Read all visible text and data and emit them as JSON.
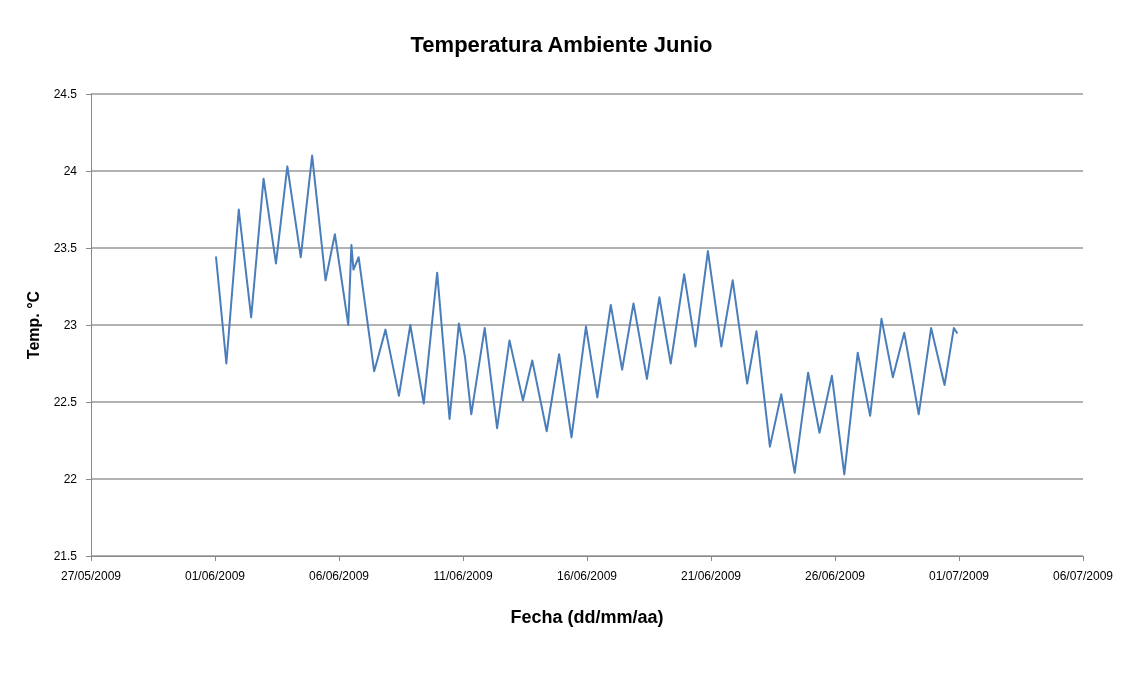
{
  "chart_data": {
    "type": "line",
    "title": "Temperatura Ambiente Junio",
    "xlabel": "Fecha (dd/mm/aa)",
    "ylabel": "Temp. °C",
    "x": [
      "2009-06-01T01:00",
      "2009-06-01T11:00",
      "2009-06-01T23:00",
      "2009-06-02T11:00",
      "2009-06-02T23:00",
      "2009-06-03T11:00",
      "2009-06-03T22:00",
      "2009-06-04T11:00",
      "2009-06-04T22:00",
      "2009-06-05T11:00",
      "2009-06-05T20:00",
      "2009-06-06T09:00",
      "2009-06-06T12:00",
      "2009-06-06T14:00",
      "2009-06-06T19:00",
      "2009-06-07T10:00",
      "2009-06-07T13:00",
      "2009-06-07T21:00",
      "2009-06-08T10:00",
      "2009-06-08T21:00",
      "2009-06-09T10:00",
      "2009-06-09T23:00",
      "2009-06-10T11:00",
      "2009-06-10T20:00",
      "2009-06-11T02:00",
      "2009-06-11T08:00",
      "2009-06-11T21:00",
      "2009-06-12T09:00",
      "2009-06-12T21:00",
      "2009-06-13T10:00",
      "2009-06-13T19:00",
      "2009-06-14T09:00",
      "2009-06-14T21:00",
      "2009-06-15T09:00",
      "2009-06-15T23:00",
      "2009-06-16T10:00",
      "2009-06-16T23:00",
      "2009-06-17T10:00",
      "2009-06-17T21:00",
      "2009-06-18T10:00",
      "2009-06-18T22:00",
      "2009-06-19T09:00",
      "2009-06-19T22:00",
      "2009-06-20T09:00",
      "2009-06-20T21:00",
      "2009-06-21T10:00",
      "2009-06-21T21:00",
      "2009-06-22T11:00",
      "2009-06-22T20:00",
      "2009-06-23T09:00",
      "2009-06-23T20:00",
      "2009-06-24T09:00",
      "2009-06-24T22:00",
      "2009-06-25T09:00",
      "2009-06-25T21:00",
      "2009-06-26T09:00",
      "2009-06-26T22:00",
      "2009-06-27T10:00",
      "2009-06-27T21:00",
      "2009-06-28T08:00",
      "2009-06-28T19:00",
      "2009-06-29T09:00",
      "2009-06-29T21:00",
      "2009-06-30T10:00",
      "2009-06-30T19:00",
      "2009-06-30T22:00"
    ],
    "series": [
      {
        "color": "#4a7ebb",
        "values": [
          23.44,
          22.75,
          23.75,
          23.05,
          23.95,
          23.4,
          24.03,
          23.44,
          24.1,
          23.29,
          23.59,
          23.0,
          23.52,
          23.36,
          23.44,
          22.7,
          22.77,
          22.97,
          22.54,
          23.0,
          22.49,
          23.34,
          22.39,
          23.01,
          22.79,
          22.42,
          22.98,
          22.33,
          22.9,
          22.51,
          22.77,
          22.31,
          22.81,
          22.27,
          22.99,
          22.53,
          23.13,
          22.71,
          23.14,
          22.65,
          23.18,
          22.75,
          23.33,
          22.86,
          23.48,
          22.86,
          23.29,
          22.62,
          22.96,
          22.21,
          22.55,
          22.04,
          22.69,
          22.3,
          22.67,
          22.03,
          22.82,
          22.41,
          23.04,
          22.66,
          22.95,
          22.42,
          22.98,
          22.61,
          22.98,
          22.95
        ]
      }
    ],
    "xlim": [
      "2009-05-27",
      "2009-07-06"
    ],
    "xticks": [
      {
        "value": "2009-05-27",
        "label": "27/05/2009"
      },
      {
        "value": "2009-06-01",
        "label": "01/06/2009"
      },
      {
        "value": "2009-06-06",
        "label": "06/06/2009"
      },
      {
        "value": "2009-06-11",
        "label": "11/06/2009"
      },
      {
        "value": "2009-06-16",
        "label": "16/06/2009"
      },
      {
        "value": "2009-06-21",
        "label": "21/06/2009"
      },
      {
        "value": "2009-06-26",
        "label": "26/06/2009"
      },
      {
        "value": "2009-07-01",
        "label": "01/07/2009"
      },
      {
        "value": "2009-07-06",
        "label": "06/07/2009"
      }
    ],
    "ylim": [
      21.5,
      24.5
    ],
    "yticks": [
      21.5,
      22,
      22.5,
      23,
      23.5,
      24,
      24.5
    ],
    "grid": "y"
  }
}
